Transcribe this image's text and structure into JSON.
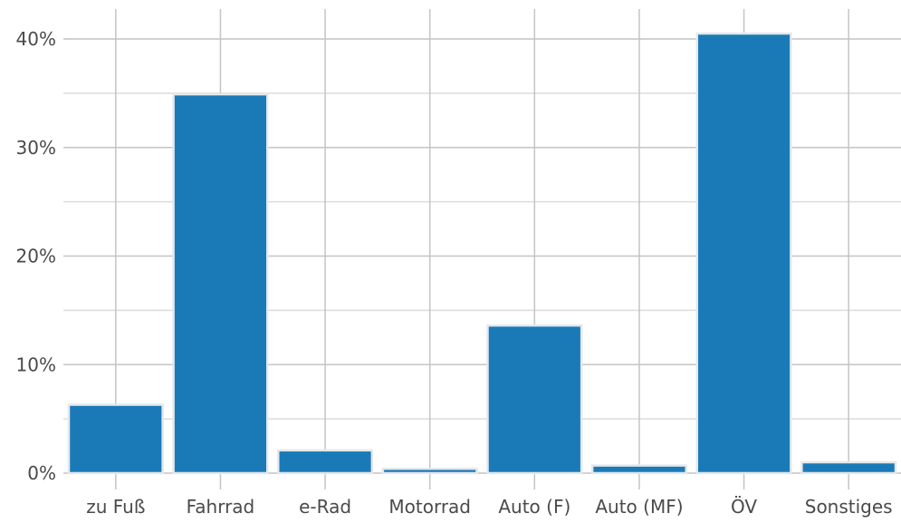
{
  "chart_data": {
    "type": "bar",
    "categories": [
      "zu Fuß",
      "Fahrrad",
      "e-Rad",
      "Motorrad",
      "Auto (F)",
      "Auto (MF)",
      "ÖV",
      "Sonstiges"
    ],
    "values": [
      6.3,
      34.9,
      2.1,
      0.4,
      13.6,
      0.7,
      40.5,
      1.0
    ],
    "y_ticks": [
      0,
      10,
      20,
      30,
      40
    ],
    "y_tick_labels": [
      "0%",
      "10%",
      "20%",
      "30%",
      "40%"
    ],
    "ylim": [
      -0.4,
      44
    ],
    "grid": true,
    "bar_color": "#1a7ab8",
    "bar_edge_color": "#e4e8ec",
    "grid_color": "#c4c4c4",
    "minor_grid_color": "#dcdcdc"
  }
}
